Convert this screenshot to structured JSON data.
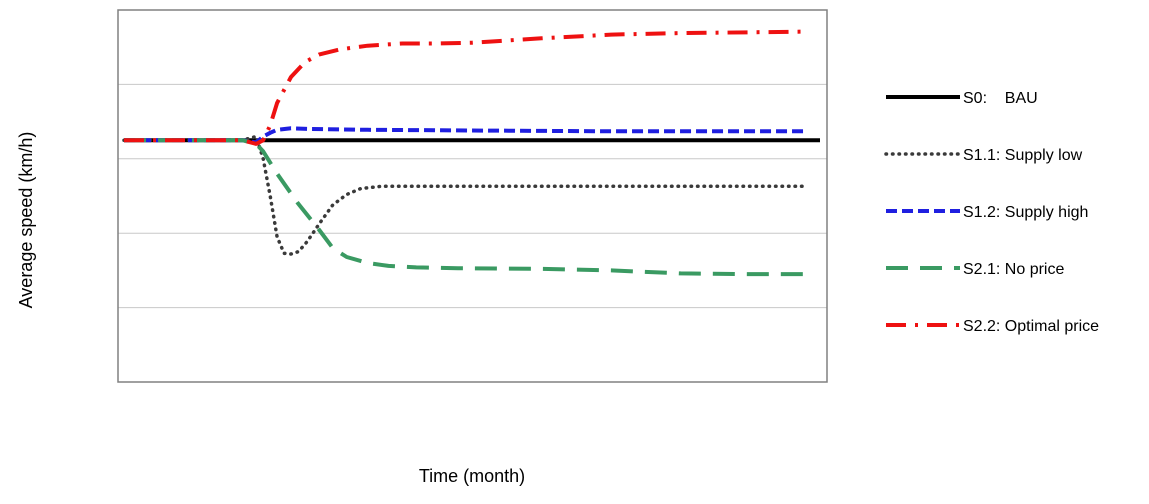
{
  "chart_data": {
    "type": "line",
    "xlabel": "Time (month)",
    "ylabel": "Average speed (km/h)",
    "x_tick_labels_shown": false,
    "y_tick_labels_shown": false,
    "ylim": [
      0,
      5
    ],
    "xlim": [
      0,
      100
    ],
    "grid": {
      "horizontal": true,
      "vertical": false
    },
    "legend_position": "right",
    "series": [
      {
        "name": "S0:    BAU",
        "color": "#000000",
        "dash": "solid",
        "x": [
          0,
          100
        ],
        "values": [
          3.25,
          3.25
        ]
      },
      {
        "name": "S1.1: Supply low",
        "color": "#3a3a3a",
        "dash": "dotted",
        "x": [
          0,
          17,
          19,
          20,
          21,
          22,
          23,
          24,
          25,
          26,
          27,
          28,
          30,
          32,
          34,
          37,
          42,
          50,
          60,
          75,
          90,
          98
        ],
        "values": [
          3.25,
          3.25,
          3.3,
          3.0,
          2.5,
          1.95,
          1.73,
          1.72,
          1.75,
          1.85,
          1.98,
          2.12,
          2.38,
          2.52,
          2.6,
          2.63,
          2.63,
          2.63,
          2.63,
          2.63,
          2.63,
          2.63
        ]
      },
      {
        "name": "S1.2: Supply high",
        "color": "#1f1fe0",
        "dash": "dashed",
        "x": [
          0,
          17,
          19,
          20,
          21,
          22,
          24,
          27,
          35,
          50,
          70,
          85,
          98
        ],
        "values": [
          3.25,
          3.25,
          3.22,
          3.3,
          3.35,
          3.39,
          3.41,
          3.4,
          3.39,
          3.38,
          3.37,
          3.37,
          3.37
        ]
      },
      {
        "name": "S2.1: No price",
        "color": "#3a9a62",
        "dash": "longdash",
        "x": [
          0,
          17,
          19,
          20,
          22,
          25,
          28,
          30,
          32,
          35,
          38,
          42,
          48,
          60,
          70,
          80,
          90,
          98
        ],
        "values": [
          3.25,
          3.25,
          3.2,
          3.1,
          2.8,
          2.4,
          2.05,
          1.8,
          1.68,
          1.6,
          1.56,
          1.54,
          1.53,
          1.52,
          1.5,
          1.46,
          1.45,
          1.45
        ]
      },
      {
        "name": "S2.2: Optimal price",
        "color": "#ee1111",
        "dash": "dashdot",
        "x": [
          0,
          17,
          19,
          20,
          21,
          22,
          24,
          26,
          28,
          31,
          35,
          40,
          45,
          50,
          60,
          70,
          80,
          90,
          98
        ],
        "values": [
          3.25,
          3.25,
          3.2,
          3.25,
          3.45,
          3.75,
          4.1,
          4.3,
          4.4,
          4.47,
          4.52,
          4.55,
          4.55,
          4.56,
          4.62,
          4.67,
          4.69,
          4.7,
          4.71
        ]
      }
    ]
  }
}
